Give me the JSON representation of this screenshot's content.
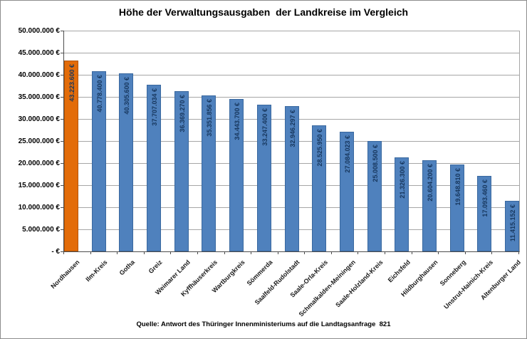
{
  "title": "Höhe der Verwaltungsausgaben  der Landkreise im Vergleich",
  "source": "Quelle: Antwort des Thüringer Innenministeriums auf die Landtagsanfrage  821",
  "colors": {
    "bar_default": "#4f81bd",
    "bar_default_border": "#39689f",
    "bar_highlight": "#e36c09",
    "bar_highlight_border": "#b35507",
    "bar_label_text": "#17375e",
    "gridline": "#a6a6a6",
    "axis": "#4d4d4d"
  },
  "chart_data": {
    "type": "bar",
    "title": "Höhe der Verwaltungsausgaben  der Landkreise im Vergleich",
    "categories": [
      "Nordhausen",
      "Ilm-Kreis",
      "Gotha",
      "Greiz",
      "Weimarer Land",
      "Kyffhäuserkreis",
      "Wartburgkreis",
      "Sömmerda",
      "Saalfeld-Rudolstadt",
      "Saale-Orla-Kreis",
      "Schmalkalden-Meiningen",
      "Saale-Holzland-Kreis",
      "Eichsfeld",
      "Hildburghausen",
      "Sonneberg",
      "Unstrut-Hainich-Kreis",
      "Altenburger Land"
    ],
    "values": [
      43223600,
      40778400,
      40305600,
      37707034,
      36369270,
      35351856,
      34443700,
      33247400,
      32946297,
      28525950,
      27084023,
      25008500,
      21326300,
      20604200,
      19648810,
      17093460,
      11415152
    ],
    "value_labels": [
      "43.223.600 €",
      "40.778.400 €",
      "40.305.600 €",
      "37.707.034 €",
      "36.369.270 €",
      "35.351.856 €",
      "34.443.700 €",
      "33.247.400 €",
      "32.946.297 €",
      "28.525.950 €",
      "27.084.023 €",
      "25.008.500 €",
      "21.326.300 €",
      "20.604.200 €",
      "19.648.810 €",
      "17.093.460 €",
      "11.415.152 €"
    ],
    "highlight_index": 0,
    "xlabel": "",
    "ylabel": "",
    "ylim": [
      0,
      50000000
    ],
    "ytick_step": 5000000,
    "ytick_labels_top_down": [
      "50.000.000 €",
      "45.000.000 €",
      "40.000.000 €",
      "35.000.000 €",
      "30.000.000 €",
      "25.000.000 €",
      "20.000.000 €",
      "15.000.000 €",
      "10.000.000 €",
      "5.000.000 €",
      "- €"
    ],
    "grid": true,
    "legend": false
  }
}
